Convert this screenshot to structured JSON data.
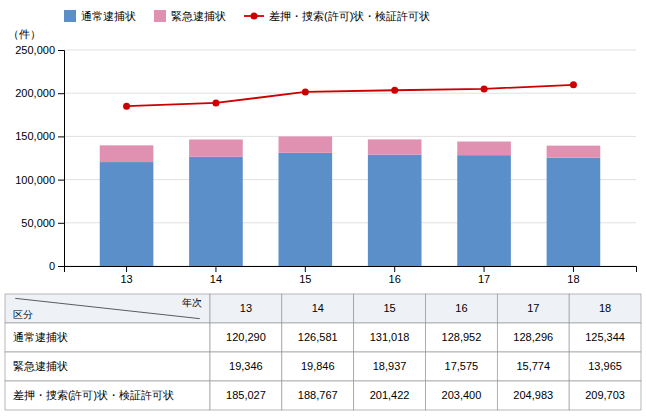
{
  "chart_data": [
    {
      "type": "bar",
      "ylabel": "（件）",
      "categories": [
        "13",
        "14",
        "15",
        "16",
        "17",
        "18"
      ],
      "series": [
        {
          "name": "通常逮捕状",
          "type": "bar",
          "color": "#5b8fc9",
          "values": [
            120290,
            126581,
            131018,
            128952,
            128296,
            125344
          ]
        },
        {
          "name": "緊急逮捕状",
          "type": "bar",
          "color": "#e090b0",
          "values": [
            19346,
            19846,
            18937,
            17575,
            15774,
            13965
          ]
        },
        {
          "name": "差押・捜索(許可)状・検証許可状",
          "type": "line",
          "color": "#cc0000",
          "marker": "circle",
          "values": [
            185027,
            188767,
            201422,
            203400,
            204983,
            209703
          ]
        }
      ],
      "stacked": true,
      "ylim": [
        0,
        250000
      ],
      "yticks": [
        0,
        {
          "value": 50000,
          "label": "50,000"
        },
        {
          "value": 100000,
          "label": "100,000"
        },
        {
          "value": 150000,
          "label": "150,000"
        },
        {
          "value": 200000,
          "label": "200,000"
        },
        {
          "value": 250000,
          "label": "250,000"
        }
      ],
      "grid": true,
      "legend": "top"
    },
    {
      "type": "table",
      "xlabel": "年次",
      "ylabel": "区分",
      "categories": [
        "13",
        "14",
        "15",
        "16",
        "17",
        "18"
      ],
      "series": [
        {
          "name": "通常逮捕状",
          "values": [
            120290,
            126581,
            131018,
            128952,
            128296,
            125344
          ],
          "value_labels": [
            "120,290",
            "126,581",
            "131,018",
            "128,952",
            "128,296",
            "125,344"
          ]
        },
        {
          "name": "緊急逮捕状",
          "values": [
            19346,
            19846,
            18937,
            17575,
            15774,
            13965
          ],
          "value_labels": [
            "19,346",
            "19,846",
            "18,937",
            "17,575",
            "15,774",
            "13,965"
          ]
        },
        {
          "name": "差押・捜索(許可)状・検証許可状",
          "values": [
            185027,
            188767,
            201422,
            203400,
            204983,
            209703
          ],
          "value_labels": [
            "185,027",
            "188,767",
            "201,422",
            "203,400",
            "204,983",
            "209,703"
          ]
        }
      ]
    }
  ]
}
